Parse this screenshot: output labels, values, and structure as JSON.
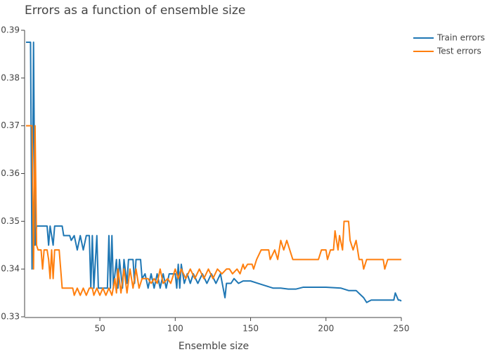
{
  "chart_data": {
    "type": "line",
    "title": "Errors as a function of ensemble size",
    "x_label": "Ensemble size",
    "xlim": [
      1,
      250
    ],
    "xticks": [
      50,
      100,
      150,
      200,
      250
    ],
    "ylim": [
      0.33,
      0.39
    ],
    "yticks": [
      0.33,
      0.34,
      0.35,
      0.36,
      0.37,
      0.38,
      0.39
    ],
    "grid": false,
    "legend": "top-right",
    "series": [
      {
        "name": "Train errors",
        "color": "#1f77b4",
        "x": [
          1,
          4,
          5,
          6,
          7,
          8,
          10,
          15,
          16,
          17,
          19,
          20,
          22,
          25,
          26,
          30,
          31,
          33,
          35,
          37,
          39,
          41,
          43,
          44,
          45,
          46,
          48,
          49,
          55,
          56,
          57,
          58,
          59,
          61,
          62,
          63,
          65,
          66,
          68,
          69,
          72,
          73,
          74,
          77,
          78,
          80,
          82,
          84,
          86,
          88,
          90,
          92,
          94,
          96,
          100,
          101,
          102,
          103,
          104,
          106,
          108,
          110,
          112,
          115,
          118,
          121,
          124,
          127,
          130,
          133,
          134,
          137,
          139,
          142,
          145,
          150,
          155,
          160,
          165,
          170,
          175,
          180,
          185,
          190,
          200,
          210,
          215,
          220,
          225,
          227,
          230,
          235,
          240,
          245,
          246,
          248,
          249,
          250
        ],
        "values": [
          0.3875,
          0.3875,
          0.34,
          0.3875,
          0.345,
          0.349,
          0.349,
          0.349,
          0.345,
          0.349,
          0.345,
          0.349,
          0.349,
          0.349,
          0.347,
          0.347,
          0.346,
          0.347,
          0.344,
          0.347,
          0.344,
          0.347,
          0.347,
          0.336,
          0.347,
          0.336,
          0.347,
          0.336,
          0.336,
          0.347,
          0.336,
          0.347,
          0.336,
          0.342,
          0.336,
          0.342,
          0.336,
          0.342,
          0.337,
          0.342,
          0.342,
          0.337,
          0.342,
          0.342,
          0.338,
          0.339,
          0.336,
          0.339,
          0.336,
          0.339,
          0.336,
          0.339,
          0.336,
          0.339,
          0.339,
          0.336,
          0.341,
          0.336,
          0.341,
          0.337,
          0.339,
          0.337,
          0.339,
          0.337,
          0.339,
          0.337,
          0.339,
          0.337,
          0.339,
          0.334,
          0.337,
          0.337,
          0.338,
          0.337,
          0.3375,
          0.3375,
          0.337,
          0.3365,
          0.336,
          0.336,
          0.3358,
          0.3358,
          0.3362,
          0.3362,
          0.3362,
          0.336,
          0.3355,
          0.3355,
          0.334,
          0.333,
          0.3335,
          0.3335,
          0.3335,
          0.3335,
          0.335,
          0.3335,
          0.3335,
          0.3333
        ]
      },
      {
        "name": "Test errors",
        "color": "#ff7f0e",
        "x": [
          1,
          5,
          6,
          7,
          8,
          9,
          11,
          12,
          13,
          15,
          16,
          17,
          18,
          19,
          20,
          23,
          25,
          32,
          33,
          35,
          37,
          39,
          41,
          43,
          45,
          46,
          48,
          50,
          52,
          54,
          56,
          58,
          60,
          61,
          62,
          64,
          66,
          68,
          70,
          72,
          74,
          76,
          78,
          82,
          84,
          86,
          88,
          90,
          92,
          95,
          97,
          100,
          102,
          104,
          107,
          110,
          113,
          116,
          119,
          122,
          125,
          128,
          131,
          134,
          136,
          138,
          141,
          143,
          145,
          146,
          148,
          151,
          152,
          154,
          157,
          162,
          163,
          166,
          168,
          170,
          172,
          174,
          176,
          178,
          185,
          195,
          197,
          200,
          201,
          203,
          205,
          206,
          208,
          209,
          211,
          212,
          215,
          216,
          218,
          220,
          222,
          224,
          225,
          227,
          235,
          238,
          239,
          241,
          245,
          250
        ],
        "values": [
          0.37,
          0.37,
          0.34,
          0.37,
          0.345,
          0.344,
          0.344,
          0.34,
          0.344,
          0.344,
          0.342,
          0.338,
          0.344,
          0.338,
          0.344,
          0.344,
          0.336,
          0.336,
          0.3345,
          0.336,
          0.3345,
          0.336,
          0.3345,
          0.336,
          0.336,
          0.3345,
          0.336,
          0.3345,
          0.336,
          0.3345,
          0.336,
          0.3345,
          0.338,
          0.335,
          0.34,
          0.335,
          0.34,
          0.335,
          0.34,
          0.336,
          0.34,
          0.336,
          0.338,
          0.338,
          0.337,
          0.338,
          0.337,
          0.34,
          0.337,
          0.338,
          0.337,
          0.34,
          0.338,
          0.34,
          0.338,
          0.34,
          0.338,
          0.34,
          0.338,
          0.34,
          0.338,
          0.34,
          0.339,
          0.34,
          0.34,
          0.339,
          0.34,
          0.339,
          0.341,
          0.34,
          0.341,
          0.341,
          0.34,
          0.342,
          0.344,
          0.344,
          0.342,
          0.344,
          0.342,
          0.346,
          0.344,
          0.346,
          0.344,
          0.342,
          0.342,
          0.342,
          0.344,
          0.344,
          0.342,
          0.344,
          0.344,
          0.348,
          0.344,
          0.347,
          0.344,
          0.35,
          0.35,
          0.346,
          0.344,
          0.346,
          0.342,
          0.342,
          0.34,
          0.342,
          0.342,
          0.342,
          0.34,
          0.342,
          0.342,
          0.342
        ]
      }
    ]
  }
}
